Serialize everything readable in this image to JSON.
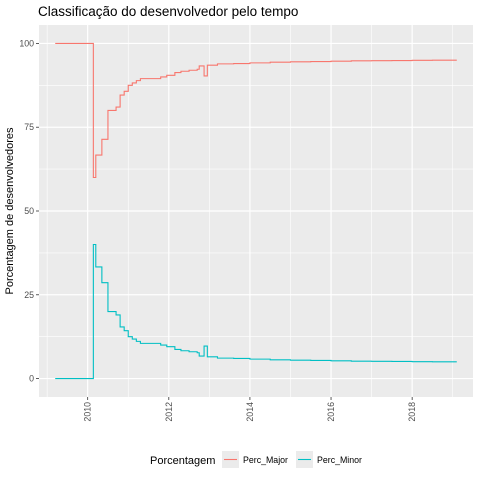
{
  "chart_data": {
    "type": "line",
    "step": true,
    "title": "Classificação do desenvolvedor pelo tempo",
    "xlabel": "",
    "ylabel": "Porcentagem de desenvolvedores",
    "xlim": [
      2008.8,
      2019.5
    ],
    "ylim": [
      -5.5,
      105.5
    ],
    "x_ticks": [
      "2010",
      "2012",
      "2014",
      "2016",
      "2018"
    ],
    "x_tick_values": [
      2010,
      2012,
      2014,
      2016,
      2018
    ],
    "y_ticks": [
      "0",
      "25",
      "50",
      "75",
      "100"
    ],
    "y_tick_values": [
      0,
      25,
      50,
      75,
      100
    ],
    "grid": true,
    "legend_position": "bottom",
    "legend_title": "Porcentagem",
    "background": "#EBEBEB",
    "series": [
      {
        "name": "Perc_Major",
        "color": "#F8766D",
        "points": [
          [
            2009.2,
            100
          ],
          [
            2010.12,
            100
          ],
          [
            2010.14,
            60
          ],
          [
            2010.2,
            66.7
          ],
          [
            2010.35,
            71.4
          ],
          [
            2010.5,
            80
          ],
          [
            2010.7,
            81
          ],
          [
            2010.8,
            84.6
          ],
          [
            2010.9,
            85.7
          ],
          [
            2011.0,
            87.5
          ],
          [
            2011.1,
            88.2
          ],
          [
            2011.2,
            88.9
          ],
          [
            2011.3,
            89.5
          ],
          [
            2011.5,
            89.5
          ],
          [
            2011.8,
            90
          ],
          [
            2011.95,
            90.5
          ],
          [
            2012.15,
            91.3
          ],
          [
            2012.3,
            91.7
          ],
          [
            2012.5,
            92
          ],
          [
            2012.7,
            92.3
          ],
          [
            2012.75,
            93.3
          ],
          [
            2012.85,
            93.3
          ],
          [
            2012.87,
            90.3
          ],
          [
            2012.95,
            93.5
          ],
          [
            2013.2,
            93.9
          ],
          [
            2013.6,
            94
          ],
          [
            2014,
            94.2
          ],
          [
            2014.5,
            94.4
          ],
          [
            2015,
            94.5
          ],
          [
            2015.5,
            94.6
          ],
          [
            2016,
            94.7
          ],
          [
            2016.5,
            94.8
          ],
          [
            2017,
            94.85
          ],
          [
            2017.5,
            94.9
          ],
          [
            2018,
            94.95
          ],
          [
            2018.5,
            95
          ],
          [
            2019.1,
            95
          ]
        ]
      },
      {
        "name": "Perc_Minor",
        "color": "#00BFC4",
        "points": [
          [
            2009.2,
            0
          ],
          [
            2010.12,
            0
          ],
          [
            2010.14,
            40
          ],
          [
            2010.2,
            33.3
          ],
          [
            2010.35,
            28.6
          ],
          [
            2010.5,
            20
          ],
          [
            2010.7,
            19
          ],
          [
            2010.8,
            15.4
          ],
          [
            2010.9,
            14.3
          ],
          [
            2011.0,
            12.5
          ],
          [
            2011.1,
            11.8
          ],
          [
            2011.2,
            11.1
          ],
          [
            2011.3,
            10.5
          ],
          [
            2011.5,
            10.5
          ],
          [
            2011.8,
            10
          ],
          [
            2011.95,
            9.5
          ],
          [
            2012.15,
            8.7
          ],
          [
            2012.3,
            8.3
          ],
          [
            2012.5,
            8
          ],
          [
            2012.7,
            7.7
          ],
          [
            2012.75,
            6.7
          ],
          [
            2012.85,
            6.7
          ],
          [
            2012.87,
            9.7
          ],
          [
            2012.95,
            6.5
          ],
          [
            2013.2,
            6.1
          ],
          [
            2013.6,
            6
          ],
          [
            2014,
            5.8
          ],
          [
            2014.5,
            5.6
          ],
          [
            2015,
            5.5
          ],
          [
            2015.5,
            5.4
          ],
          [
            2016,
            5.3
          ],
          [
            2016.5,
            5.2
          ],
          [
            2017,
            5.15
          ],
          [
            2017.5,
            5.1
          ],
          [
            2018,
            5.05
          ],
          [
            2018.5,
            5
          ],
          [
            2019.1,
            5
          ]
        ]
      }
    ]
  }
}
